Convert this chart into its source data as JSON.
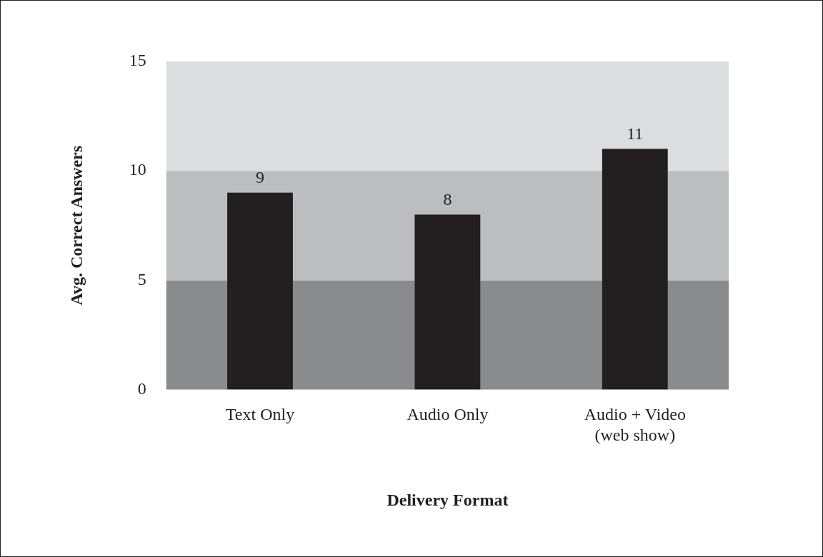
{
  "chart_data": {
    "type": "bar",
    "xlabel": "Delivery Format",
    "ylabel": "Avg. Correct Answers",
    "categories": [
      "Text Only",
      "Audio Only",
      "Audio + Video\n(web show)"
    ],
    "values": [
      9,
      8,
      11
    ],
    "color": "#231f20",
    "data_labels": true,
    "ylim": [
      0,
      15
    ],
    "yticks": [
      0,
      5,
      10,
      15
    ],
    "grid": false,
    "legend": false,
    "bands": [
      {
        "axis": "y",
        "from": 0,
        "to": 5,
        "color": "#8a8b8e"
      },
      {
        "axis": "y",
        "from": 5,
        "to": 10,
        "color": "#bcbdc0"
      },
      {
        "axis": "y",
        "from": 10,
        "to": 15,
        "color": "#dcdddf"
      }
    ]
  }
}
